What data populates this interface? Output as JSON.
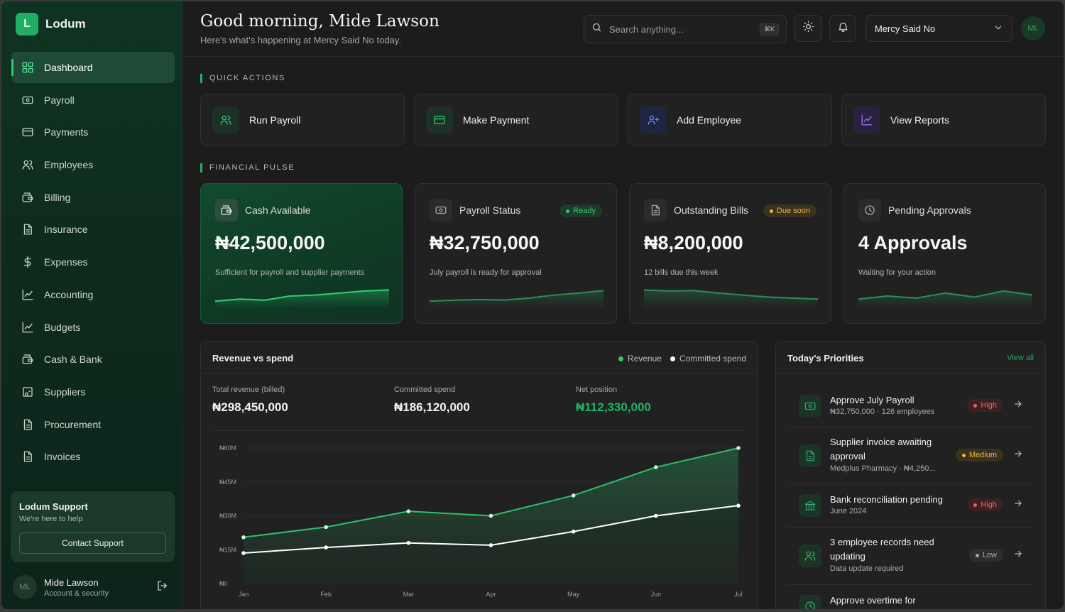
{
  "brand": {
    "logo_letter": "L",
    "name": "Lodum"
  },
  "sidebar": {
    "items": [
      {
        "label": "Dashboard",
        "icon": "grid-icon",
        "active": true
      },
      {
        "label": "Payroll",
        "icon": "payroll-icon"
      },
      {
        "label": "Payments",
        "icon": "credit-card-icon"
      },
      {
        "label": "Employees",
        "icon": "users-icon"
      },
      {
        "label": "Billing",
        "icon": "wallet-icon"
      },
      {
        "label": "Insurance",
        "icon": "document-icon"
      },
      {
        "label": "Expenses",
        "icon": "dollar-icon"
      },
      {
        "label": "Accounting",
        "icon": "chart-line-icon"
      },
      {
        "label": "Budgets",
        "icon": "chart-line-icon"
      },
      {
        "label": "Cash & Bank",
        "icon": "wallet-icon"
      },
      {
        "label": "Suppliers",
        "icon": "store-icon"
      },
      {
        "label": "Procurement",
        "icon": "document-icon"
      },
      {
        "label": "Invoices",
        "icon": "document-icon"
      }
    ],
    "support": {
      "title": "Lodum Support",
      "subtitle": "We're here to help",
      "button": "Contact Support"
    },
    "profile": {
      "initials": "ML",
      "name": "Mide Lawson",
      "subtitle": "Account & security"
    }
  },
  "header": {
    "greeting": "Good morning, Mide Lawson",
    "subtitle": "Here's what's happening at Mercy Said No today.",
    "search_placeholder": "Search anything...",
    "search_shortcut": "⌘K",
    "org": "Mercy Said No",
    "avatar_initials": "ML"
  },
  "quick_actions": {
    "label": "QUICK ACTIONS",
    "items": [
      {
        "label": "Run Payroll",
        "icon": "users-icon",
        "color": "#2ecc71",
        "bg": "#1d3126"
      },
      {
        "label": "Make Payment",
        "icon": "credit-card-icon",
        "color": "#2ecc71",
        "bg": "#1d3126"
      },
      {
        "label": "Add Employee",
        "icon": "user-plus-icon",
        "color": "#6d8cff",
        "bg": "#1f2540"
      },
      {
        "label": "View Reports",
        "icon": "chart-line-icon",
        "color": "#9b6dff",
        "bg": "#2a2140"
      }
    ]
  },
  "financial_pulse": {
    "label": "FINANCIAL PULSE",
    "cards": [
      {
        "title": "Cash Available",
        "value": "₦42,500,000",
        "description": "Sufficient for payroll and supplier payments",
        "badge": "",
        "spark": [
          0.3,
          0.4,
          0.35,
          0.55,
          0.6,
          0.7,
          0.8,
          0.85
        ]
      },
      {
        "title": "Payroll Status",
        "value": "₦32,750,000",
        "description": "July payroll is ready for approval",
        "badge": "Ready",
        "badge_color": "#2ecc71",
        "badge_bg": "#1e3a2a",
        "spark": [
          0.3,
          0.35,
          0.38,
          0.36,
          0.45,
          0.6,
          0.7,
          0.82
        ]
      },
      {
        "title": "Outstanding Bills",
        "value": "₦8,200,000",
        "description": "12 bills due this week",
        "badge": "Due soon",
        "badge_color": "#f0b43c",
        "badge_bg": "#3a3220",
        "spark": [
          0.85,
          0.8,
          0.82,
          0.7,
          0.6,
          0.5,
          0.45,
          0.4
        ]
      },
      {
        "title": "Pending Approvals",
        "value": "4 Approvals",
        "description": "Waiting for your action",
        "badge": "",
        "spark": [
          0.4,
          0.55,
          0.45,
          0.7,
          0.5,
          0.8,
          0.6
        ]
      }
    ]
  },
  "revenue_panel": {
    "title": "Revenue vs spend",
    "legend": [
      {
        "label": "Revenue",
        "color": "#2ecc71"
      },
      {
        "label": "Committed spend",
        "color": "#ffffff"
      }
    ],
    "metrics": [
      {
        "label": "Total revenue (billed)",
        "value": "₦298,450,000",
        "color": "#f3f3f3"
      },
      {
        "label": "Committed spend",
        "value": "₦186,120,000",
        "color": "#f3f3f3"
      },
      {
        "label": "Net position",
        "value": "₦112,330,000",
        "color": "#1fb264"
      }
    ]
  },
  "chart_data": {
    "type": "area",
    "categories": [
      "Jan",
      "Feb",
      "Mar",
      "Apr",
      "May",
      "Jun",
      "Jul"
    ],
    "y_tick_labels": [
      "₦0",
      "₦15M",
      "₦30M",
      "₦45M",
      "₦60M"
    ],
    "ylim": [
      0,
      60
    ],
    "series": [
      {
        "name": "Revenue",
        "color": "#2ecc71",
        "values": [
          20.5,
          25,
          32,
          30,
          39,
          51.5,
          60
        ]
      },
      {
        "name": "Committed spend",
        "color": "#ffffff",
        "values": [
          13.5,
          16,
          18,
          17,
          23,
          30,
          34.5
        ]
      }
    ],
    "grid": true
  },
  "priorities": {
    "title": "Today's Priorities",
    "view_all": "View all",
    "items": [
      {
        "title": "Approve July Payroll",
        "subtitle": "₦32,750,000 · 126 employees",
        "badge": "High",
        "badge_color": "#ff5b5b",
        "badge_bg": "#3a2222",
        "icon": "payroll-icon"
      },
      {
        "title": "Supplier invoice awaiting approval",
        "subtitle": "Medplus Pharmacy · ₦4,250...",
        "badge": "Medium",
        "badge_color": "#f0b43c",
        "badge_bg": "#3a3220",
        "icon": "document-icon"
      },
      {
        "title": "Bank reconciliation pending",
        "subtitle": "June 2024",
        "badge": "High",
        "badge_color": "#ff5b5b",
        "badge_bg": "#3a2222",
        "icon": "bank-icon"
      },
      {
        "title": "3 employee records need updating",
        "subtitle": "Data update required",
        "badge": "Low",
        "badge_color": "#a8a8a8",
        "badge_bg": "#2e2e2e",
        "icon": "users-icon"
      },
      {
        "title": "Approve overtime for",
        "subtitle": "",
        "badge": "",
        "icon": "clock-icon"
      }
    ]
  }
}
